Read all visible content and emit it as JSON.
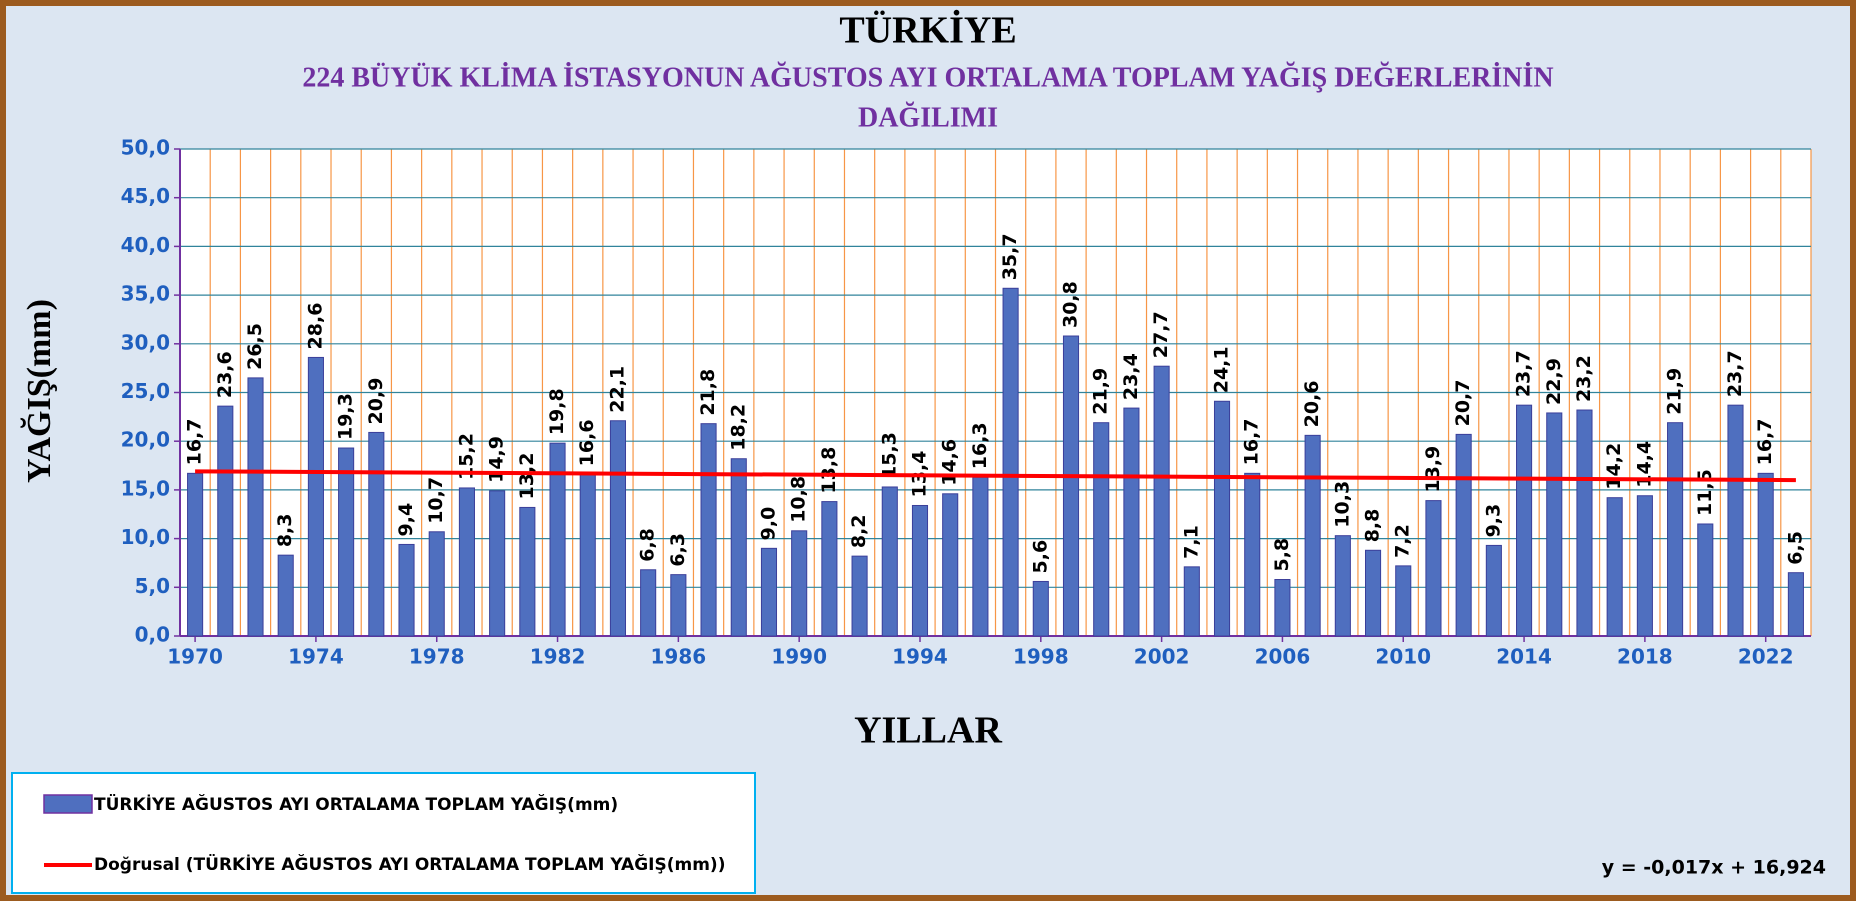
{
  "chart_data": {
    "type": "bar",
    "title": "TÜRKİYE",
    "subtitle": [
      "224 BÜYÜK KLİMA İSTASYONUN AĞUSTOS  AYI  ORTALAMA TOPLAM  YAĞIŞ DEĞERLERİNİN",
      "DAĞILIMI"
    ],
    "x_label": "YILLAR",
    "y_label": "YAĞIŞ(mm)",
    "categories": [
      "1970",
      null,
      null,
      null,
      "1974",
      null,
      null,
      null,
      "1978",
      null,
      null,
      null,
      "1982",
      null,
      null,
      null,
      "1986",
      null,
      null,
      null,
      "1990",
      null,
      null,
      null,
      "1994",
      null,
      null,
      null,
      "1998",
      null,
      null,
      null,
      "2002",
      null,
      null,
      null,
      "2006",
      null,
      null,
      null,
      "2010",
      null,
      null,
      null,
      "2014",
      null,
      null,
      null,
      "2018",
      null,
      null,
      null,
      "2022",
      null
    ],
    "series": [
      {
        "name": "TÜRKİYE AĞUSTOS AYI ORTALAMA  TOPLAM  YAĞIŞ(mm)",
        "color": "#4f6fbf",
        "values": [
          16.7,
          23.6,
          26.5,
          8.3,
          28.6,
          19.3,
          20.9,
          9.4,
          10.7,
          15.2,
          14.9,
          13.2,
          19.8,
          16.6,
          22.1,
          6.8,
          6.3,
          21.8,
          18.2,
          9.0,
          10.8,
          13.8,
          8.2,
          15.3,
          13.4,
          14.6,
          16.3,
          35.7,
          5.6,
          30.8,
          21.9,
          23.4,
          27.7,
          7.1,
          24.1,
          16.7,
          5.8,
          20.6,
          10.3,
          8.8,
          7.2,
          13.9,
          20.7,
          9.3,
          23.7,
          22.9,
          23.2,
          14.2,
          14.4,
          21.9,
          11.5,
          23.7,
          16.7,
          6.5
        ],
        "value_labels": [
          "16,7",
          "23,6",
          "26,5",
          "8,3",
          "28,6",
          "19,3",
          "20,9",
          "9,4",
          "10,7",
          "15,2",
          "14,9",
          "13,2",
          "19,8",
          "16,6",
          "22,1",
          "6,8",
          "6,3",
          "21,8",
          "18,2",
          "9,0",
          "10,8",
          "13,8",
          "8,2",
          "15,3",
          "13,4",
          "14,6",
          "16,3",
          "35,7",
          "5,6",
          "30,8",
          "21,9",
          "23,4",
          "27,7",
          "7,1",
          "24,1",
          "16,7",
          "5,8",
          "20,6",
          "10,3",
          "8,8",
          "7,2",
          "13,9",
          "20,7",
          "9,3",
          "23,7",
          "22,9",
          "23,2",
          "14,2",
          "14,4",
          "21,9",
          "11,5",
          "23,7",
          "16,7",
          "6,5"
        ]
      }
    ],
    "trendline": {
      "name": "Doğrusal (TÜRKİYE  AĞUSTOS AYI ORTALAMA  TOPLAM  YAĞIŞ(mm))",
      "color": "#ff0000",
      "slope": -0.017,
      "intercept": 16.924,
      "equation": "y = -0,017x + 16,924"
    },
    "ylim": [
      0,
      50
    ],
    "yticks": [
      {
        "value": 0,
        "label": "0,0"
      },
      {
        "value": 5,
        "label": "5,0"
      },
      {
        "value": 10,
        "label": "10,0"
      },
      {
        "value": 15,
        "label": "15,0"
      },
      {
        "value": 20,
        "label": "20,0"
      },
      {
        "value": 25,
        "label": "25,0"
      },
      {
        "value": 30,
        "label": "30,0"
      },
      {
        "value": 35,
        "label": "35,0"
      },
      {
        "value": 40,
        "label": "40,0"
      },
      {
        "value": 45,
        "label": "45,0"
      },
      {
        "value": 50,
        "label": "50,0"
      }
    ],
    "grid": true
  }
}
